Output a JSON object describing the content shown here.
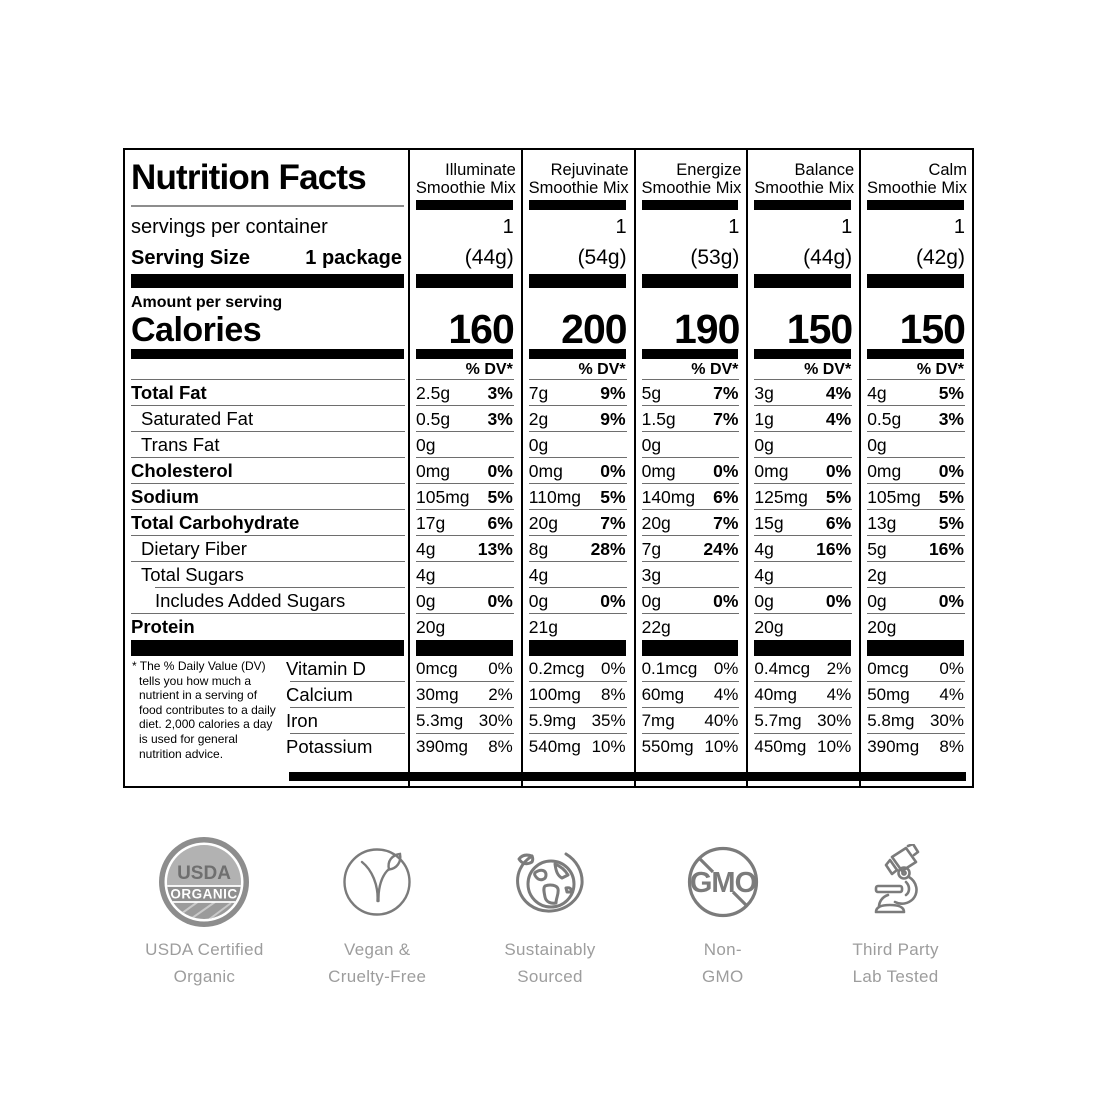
{
  "label": {
    "title": "Nutrition Facts",
    "servings_per_container_label": "servings per container",
    "serving_size_label": "Serving Size",
    "serving_size_value": "1 package",
    "amount_per_serving_label": "Amount per serving",
    "calories_label": "Calories",
    "dv_header": "% DV*",
    "footnote_marker": "*",
    "footnote": "The % Daily Value (DV) tells you how much a nutrient in a serving of food contributes to a daily diet. 2,000 calories a day is used for general nutrition advice.",
    "products": [
      {
        "name": "Illuminate",
        "line2": "Smoothie Mix",
        "servings": "1",
        "weight": "(44g)",
        "calories": "160"
      },
      {
        "name": "Rejuvinate",
        "line2": "Smoothie Mix",
        "servings": "1",
        "weight": "(54g)",
        "calories": "200"
      },
      {
        "name": "Energize",
        "line2": "Smoothie Mix",
        "servings": "1",
        "weight": "(53g)",
        "calories": "190"
      },
      {
        "name": "Balance",
        "line2": "Smoothie Mix",
        "servings": "1",
        "weight": "(44g)",
        "calories": "150"
      },
      {
        "name": "Calm",
        "line2": "Smoothie Mix",
        "servings": "1",
        "weight": "(42g)",
        "calories": "150"
      }
    ],
    "nutrient_rows": [
      {
        "label": "Total Fat",
        "style": "bold",
        "indent": 0,
        "values": [
          {
            "amt": "2.5g",
            "dv": "3%"
          },
          {
            "amt": "7g",
            "dv": "9%"
          },
          {
            "amt": "5g",
            "dv": "7%"
          },
          {
            "amt": "3g",
            "dv": "4%"
          },
          {
            "amt": "4g",
            "dv": "5%"
          }
        ]
      },
      {
        "label": "Saturated Fat",
        "style": "plain",
        "indent": 1,
        "values": [
          {
            "amt": "0.5g",
            "dv": "3%"
          },
          {
            "amt": "2g",
            "dv": "9%"
          },
          {
            "amt": "1.5g",
            "dv": "7%"
          },
          {
            "amt": "1g",
            "dv": "4%"
          },
          {
            "amt": "0.5g",
            "dv": "3%"
          }
        ]
      },
      {
        "label": "Trans Fat",
        "style": "plain",
        "indent": 1,
        "values": [
          {
            "amt": "0g"
          },
          {
            "amt": "0g"
          },
          {
            "amt": "0g"
          },
          {
            "amt": "0g"
          },
          {
            "amt": "0g"
          }
        ]
      },
      {
        "label": "Cholesterol",
        "style": "bold",
        "indent": 0,
        "values": [
          {
            "amt": "0mg",
            "dv": "0%"
          },
          {
            "amt": "0mg",
            "dv": "0%"
          },
          {
            "amt": "0mg",
            "dv": "0%"
          },
          {
            "amt": "0mg",
            "dv": "0%"
          },
          {
            "amt": "0mg",
            "dv": "0%"
          }
        ]
      },
      {
        "label": "Sodium",
        "style": "bold",
        "indent": 0,
        "values": [
          {
            "amt": "105mg",
            "dv": "5%"
          },
          {
            "amt": "110mg",
            "dv": "5%"
          },
          {
            "amt": "140mg",
            "dv": "6%"
          },
          {
            "amt": "125mg",
            "dv": "5%"
          },
          {
            "amt": "105mg",
            "dv": "5%"
          }
        ]
      },
      {
        "label": "Total Carbohydrate",
        "style": "bold",
        "indent": 0,
        "values": [
          {
            "amt": "17g",
            "dv": "6%"
          },
          {
            "amt": "20g",
            "dv": "7%"
          },
          {
            "amt": "20g",
            "dv": "7%"
          },
          {
            "amt": "15g",
            "dv": "6%"
          },
          {
            "amt": "13g",
            "dv": "5%"
          }
        ]
      },
      {
        "label": "Dietary Fiber",
        "style": "plain",
        "indent": 1,
        "values": [
          {
            "amt": "4g",
            "dv": "13%"
          },
          {
            "amt": "8g",
            "dv": "28%"
          },
          {
            "amt": "7g",
            "dv": "24%"
          },
          {
            "amt": "4g",
            "dv": "16%"
          },
          {
            "amt": "5g",
            "dv": "16%"
          }
        ]
      },
      {
        "label": "Total Sugars",
        "style": "plain",
        "indent": 1,
        "indent_border": true,
        "values": [
          {
            "amt": "4g"
          },
          {
            "amt": "4g"
          },
          {
            "amt": "3g"
          },
          {
            "amt": "4g"
          },
          {
            "amt": "2g"
          }
        ]
      },
      {
        "label": "Includes Added Sugars",
        "style": "plain",
        "indent": 2,
        "values": [
          {
            "amt": "0g",
            "dv": "0%"
          },
          {
            "amt": "0g",
            "dv": "0%"
          },
          {
            "amt": "0g",
            "dv": "0%"
          },
          {
            "amt": "0g",
            "dv": "0%"
          },
          {
            "amt": "0g",
            "dv": "0%"
          }
        ]
      },
      {
        "label": "Protein",
        "style": "bold",
        "indent": 0,
        "last": true,
        "values": [
          {
            "amt": "20g"
          },
          {
            "amt": "21g"
          },
          {
            "amt": "22g"
          },
          {
            "amt": "20g"
          },
          {
            "amt": "20g"
          }
        ]
      }
    ],
    "micronutrient_rows": [
      {
        "label": "Vitamin D",
        "values": [
          {
            "amt": "0mcg",
            "dv": "0%"
          },
          {
            "amt": "0.2mcg",
            "dv": "0%"
          },
          {
            "amt": "0.1mcg",
            "dv": "0%"
          },
          {
            "amt": "0.4mcg",
            "dv": "2%"
          },
          {
            "amt": "0mcg",
            "dv": "0%"
          }
        ]
      },
      {
        "label": "Calcium",
        "values": [
          {
            "amt": "30mg",
            "dv": "2%"
          },
          {
            "amt": "100mg",
            "dv": "8%"
          },
          {
            "amt": "60mg",
            "dv": "4%"
          },
          {
            "amt": "40mg",
            "dv": "4%"
          },
          {
            "amt": "50mg",
            "dv": "4%"
          }
        ]
      },
      {
        "label": "Iron",
        "values": [
          {
            "amt": "5.3mg",
            "dv": "30%"
          },
          {
            "amt": "5.9mg",
            "dv": "35%"
          },
          {
            "amt": "7mg",
            "dv": "40%"
          },
          {
            "amt": "5.7mg",
            "dv": "30%"
          },
          {
            "amt": "5.8mg",
            "dv": "30%"
          }
        ]
      },
      {
        "label": "Potassium",
        "values": [
          {
            "amt": "390mg",
            "dv": "8%"
          },
          {
            "amt": "540mg",
            "dv": "10%"
          },
          {
            "amt": "550mg",
            "dv": "10%"
          },
          {
            "amt": "450mg",
            "dv": "10%"
          },
          {
            "amt": "390mg",
            "dv": "8%"
          }
        ]
      }
    ]
  },
  "badges": [
    {
      "icon": "usda-organic-seal",
      "seal_top": "USDA",
      "seal_band": "ORGANIC",
      "lines": [
        "USDA Certified",
        "Organic"
      ]
    },
    {
      "icon": "vegan-sprout",
      "lines": [
        "Vegan &",
        "Cruelty-Free"
      ]
    },
    {
      "icon": "globe-sustainable",
      "lines": [
        "Sustainably",
        "Sourced"
      ]
    },
    {
      "icon": "gmo-prohibited",
      "gmo_text": "GMO",
      "lines": [
        "Non-",
        "GMO"
      ]
    },
    {
      "icon": "microscope",
      "lines": [
        "Third Party",
        "Lab Tested"
      ]
    }
  ],
  "colors": {
    "icon_gray": "#7b7b7b",
    "badge_text_gray": "#9d9d9d",
    "hairline_gray": "#6e6e6e",
    "black": "#000000"
  }
}
